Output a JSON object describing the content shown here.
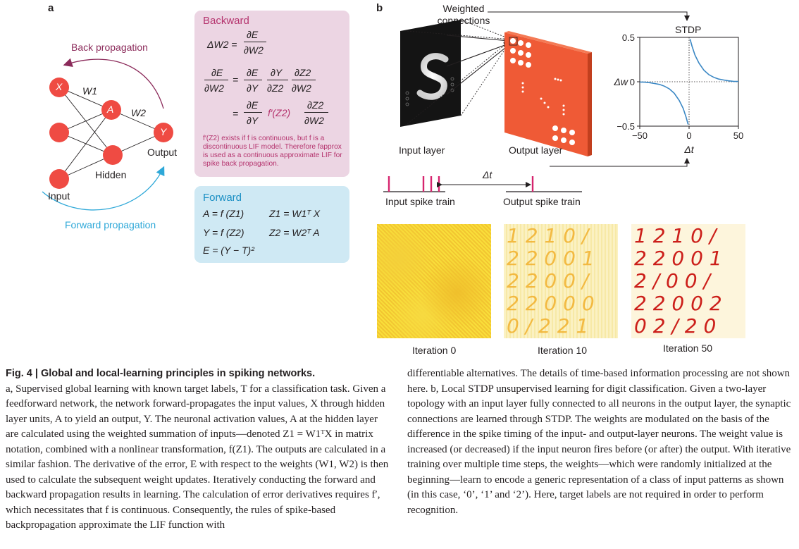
{
  "panel_a": {
    "letter": "a",
    "back_propagation": "Back propagation",
    "forward_propagation": "Forward propagation",
    "node_x": "X",
    "node_a": "A",
    "node_y": "Y",
    "w1": "W1",
    "w2": "W2",
    "input": "Input",
    "hidden": "Hidden",
    "output": "Output",
    "backward": {
      "title": "Backward",
      "eq1_lhs": "ΔW2 =",
      "eq1_num": "∂E",
      "eq1_den": "∂W2",
      "eq2_lhs_num": "∂E",
      "eq2_lhs_den": "∂W2",
      "eq2_eq": "=",
      "eq2_r1_num": "∂E",
      "eq2_r1_den": "∂Y",
      "eq2_r2_num": "∂Y",
      "eq2_r2_den": "∂Z2",
      "eq2_r3_num": "∂Z2",
      "eq2_r3_den": "∂W2",
      "eq3_eq": "=",
      "eq3_r1_num": "∂E",
      "eq3_r1_den": "∂Y",
      "eq3_mid": "f′(Z2)",
      "eq3_r3_num": "∂Z2",
      "eq3_r3_den": "∂W2",
      "note": "f′(Z2) exists if f is continuous, but f is a discontinuous LIF model. Therefore fapprox is used as a continuous approximate LIF for spike back propagation."
    },
    "forward": {
      "title": "Forward",
      "l1a": "A = f (Z1)",
      "l1b": "Z1 = W1ᵀ X",
      "l2a": "Y = f (Z2)",
      "l2b": "Z2 = W2ᵀ A",
      "l3": "E = (Y − T)²"
    }
  },
  "panel_b": {
    "letter": "b",
    "weighted_connections_1": "Weighted",
    "weighted_connections_2": "connections",
    "input_layer": "Input layer",
    "output_layer": "Output layer",
    "delta_t": "Δt",
    "input_spike_train": "Input spike train",
    "output_spike_train": "Output spike train",
    "iteration_labels": [
      "Iteration 0",
      "Iteration 10",
      "Iteration 50"
    ],
    "digit_rows_10": [
      "1 2 1 0 /",
      "2 2 0 0 1",
      "2 2 0 0 /",
      "2 2 0 0 0",
      "0 / 2 2 1"
    ],
    "digit_rows_50": [
      "1 2 1 0 /",
      "2 2 0 0 1",
      "2 / 0 0 /",
      "2 2 0 0 2",
      "0 2 / 2 0"
    ]
  },
  "chart_data": {
    "type": "line",
    "title": "STDP",
    "xlabel": "Δt",
    "ylabel": "Δw",
    "xlim": [
      -50,
      50
    ],
    "ylim": [
      -0.5,
      0.5
    ],
    "xticks": [
      "−50",
      "0",
      "50"
    ],
    "yticks": [
      "0.5",
      "0",
      "−0.5"
    ],
    "series": [
      {
        "x": [
          1,
          3,
          6,
          10,
          15,
          20,
          25,
          30,
          35,
          40,
          45,
          50
        ],
        "y": [
          0.48,
          0.4,
          0.3,
          0.21,
          0.13,
          0.08,
          0.05,
          0.03,
          0.02,
          0.01,
          0.005,
          0.003
        ]
      },
      {
        "x": [
          -50,
          -45,
          -40,
          -35,
          -30,
          -25,
          -20,
          -15,
          -10,
          -6,
          -3,
          -1
        ],
        "y": [
          -0.003,
          -0.005,
          -0.01,
          -0.02,
          -0.03,
          -0.05,
          -0.08,
          -0.13,
          -0.21,
          -0.3,
          -0.4,
          -0.48
        ]
      }
    ],
    "color": "#3a87c4"
  },
  "caption": {
    "title": "Fig. 4 | Global and local-learning principles in spiking networks.",
    "left": "a, Supervised global learning with known target labels, T for a classification task. Given a feedforward network, the network forward-propagates the input values, X through hidden layer units, A to yield an output, Y. The neuronal activation values, A at the hidden layer are calculated using the weighted summation of inputs—denoted Z1 = W1ᵀX in matrix notation, combined with a nonlinear transformation, f(Z1). The outputs are calculated in a similar fashion. The derivative of the error, E with respect to the weights (W1, W2) is then used to calculate the subsequent weight updates. Iteratively conducting the forward and backward propagation results in learning. The calculation of error derivatives requires f′, which necessitates that f is continuous. Consequently, the rules of spike-based backpropagation approximate the LIF function with",
    "right": "differentiable alternatives. The details of time-based information processing are not shown here. b, Local STDP unsupervised learning for digit classification. Given a two-layer topology with an input layer fully connected to all neurons in the output layer, the synaptic connections are learned through STDP. The weights are modulated on the basis of the difference in the spike timing of the input- and output-layer neurons. The weight value is increased (or decreased) if the input neuron fires before (or after) the output. With iterative training over multiple time steps, the weights—which were randomly initialized at the beginning—learn to encode a generic representation of a class of input patterns as shown (in this case, ‘0’, ‘1’ and ‘2’). Here, target labels are not required in order to perform recognition."
  },
  "colors": {
    "neuron": "#ef4b43",
    "back_arrow": "#8b2a5a",
    "forward_arrow": "#2ea8d8",
    "magenta_text": "#b5346e",
    "spike": "#d6246e",
    "stdp_curve": "#3a87c4"
  }
}
